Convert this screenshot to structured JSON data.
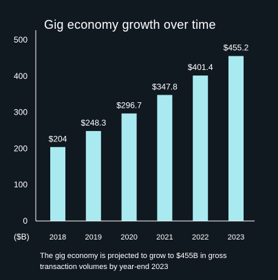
{
  "colors": {
    "background": "#101820",
    "bar": "#a8eaf0",
    "text": "#ffffff",
    "axis": "#ffffff"
  },
  "chart_data": {
    "type": "bar",
    "title": "Gig economy growth over time",
    "xlabel": "",
    "ylabel": "",
    "unit_label": "($B)",
    "categories": [
      "2018",
      "2019",
      "2020",
      "2021",
      "2022",
      "2023"
    ],
    "values": [
      204,
      248.3,
      296.7,
      347.8,
      401.4,
      455.2
    ],
    "data_labels": [
      "$204",
      "$248.3",
      "$296.7",
      "$347.8",
      "$401.4",
      "$455.2"
    ],
    "ylim": [
      0,
      500
    ],
    "yticks": [
      0,
      100,
      200,
      300,
      400,
      500
    ],
    "grid": false
  },
  "caption": "The gig economy is projected to grow to $455B in gross transaction volumes by year-end 2023"
}
